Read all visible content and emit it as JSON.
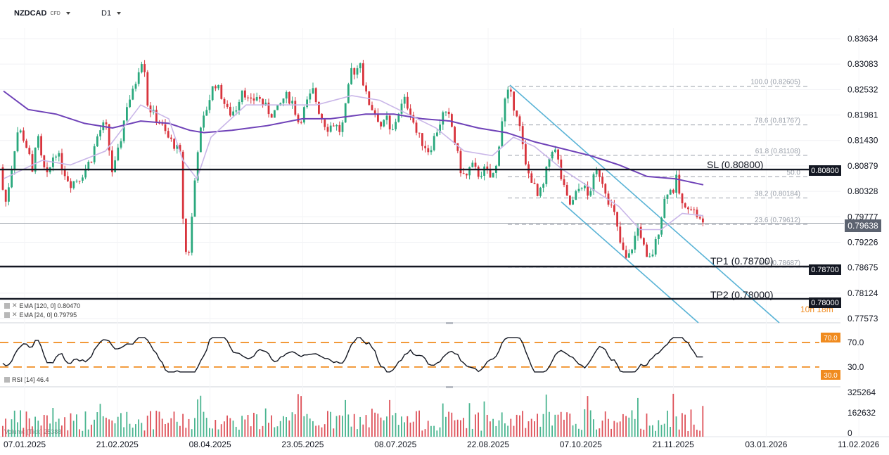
{
  "header": {
    "symbol": "NZDCAD",
    "symbol_tag": "CFD",
    "timeframe": "D1"
  },
  "legend": {
    "ema120": "EMA [120, 0] 0.80470",
    "ema24": "EMA [24, 0] 0.79795",
    "rsi": "RSI [14] 46.4",
    "volume": "Volume [Tick] 25388"
  },
  "colors": {
    "up": "#2aa87d",
    "down": "#d8343d",
    "ema120": "#6f42b8",
    "ema24": "#c9b6e8",
    "channel": "#59b3d6",
    "rsi_band": "#f08b1f",
    "level": "#131722"
  },
  "annotations": {
    "sl": "SL (0.80800)",
    "tp1": "TP1 (0.78700)",
    "tp2": "TP2 (0.78000)",
    "sl_tag": "0.80800",
    "tp1_tag": "0.78700",
    "tp2_tag": "0.78000",
    "current_tag": "0.79638",
    "countdown": "10h 18m",
    "rsi70_tag": "70.0",
    "rsi30_tag": "30.0"
  },
  "chart_data": {
    "type": "candlestick",
    "price_axis": {
      "range": [
        0.7757,
        0.8375
      ],
      "ticks": [
        "0.83634",
        "0.83083",
        "0.82532",
        "0.81981",
        "0.81430",
        "0.80879",
        "0.80328",
        "0.79777",
        "0.79226",
        "0.78675",
        "0.78124",
        "0.77573"
      ]
    },
    "x_axis": {
      "ticks": [
        "07.01.2025",
        "21.02.2025",
        "08.04.2025",
        "23.05.2025",
        "08.07.2025",
        "22.08.2025",
        "07.10.2025",
        "21.11.2025",
        "03.01.2026",
        "11.02.2026"
      ]
    },
    "fibonacci": [
      {
        "label": "100.0 (0.82605)",
        "value": 0.82605
      },
      {
        "label": "78.6 (0.81767)",
        "value": 0.81767
      },
      {
        "label": "61.8 (0.81108)",
        "value": 0.81108
      },
      {
        "label": "50.0",
        "value": 0.80645
      },
      {
        "label": "38.2 (0.80184)",
        "value": 0.80184
      },
      {
        "label": "23.6 (0.79612)",
        "value": 0.79612
      },
      {
        "label": "0.0 (0.78687)",
        "value": 0.78687
      }
    ],
    "levels": [
      {
        "name": "SL",
        "value": 0.808
      },
      {
        "name": "TP1",
        "value": 0.787
      },
      {
        "name": "TP2",
        "value": 0.78
      }
    ],
    "current_price": 0.79638,
    "anchor_closes": [
      [
        0,
        0.8085
      ],
      [
        7,
        0.8
      ],
      [
        14,
        0.806
      ],
      [
        20,
        0.812
      ],
      [
        26,
        0.817
      ],
      [
        33,
        0.815
      ],
      [
        40,
        0.812
      ],
      [
        46,
        0.807
      ],
      [
        52,
        0.8165
      ],
      [
        60,
        0.809
      ],
      [
        68,
        0.806
      ],
      [
        74,
        0.8105
      ],
      [
        80,
        0.812
      ],
      [
        90,
        0.808
      ],
      [
        100,
        0.805
      ],
      [
        115,
        0.8065
      ],
      [
        130,
        0.8105
      ],
      [
        140,
        0.816
      ],
      [
        150,
        0.818
      ],
      [
        160,
        0.807
      ],
      [
        170,
        0.813
      ],
      [
        180,
        0.822
      ],
      [
        190,
        0.825
      ],
      [
        200,
        0.832
      ],
      [
        205,
        0.831
      ],
      [
        210,
        0.822
      ],
      [
        218,
        0.82
      ],
      [
        228,
        0.818
      ],
      [
        238,
        0.815
      ],
      [
        250,
        0.813
      ],
      [
        256,
        0.811
      ],
      [
        262,
        0.792
      ],
      [
        267,
        0.788
      ],
      [
        271,
        0.794
      ],
      [
        276,
        0.804
      ],
      [
        282,
        0.814
      ],
      [
        288,
        0.818
      ],
      [
        295,
        0.822
      ],
      [
        305,
        0.827
      ],
      [
        315,
        0.824
      ],
      [
        325,
        0.82
      ],
      [
        335,
        0.821
      ],
      [
        345,
        0.826
      ],
      [
        355,
        0.822
      ],
      [
        365,
        0.824
      ],
      [
        375,
        0.822
      ],
      [
        385,
        0.82
      ],
      [
        395,
        0.821
      ],
      [
        405,
        0.824
      ],
      [
        415,
        0.823
      ],
      [
        425,
        0.818
      ],
      [
        435,
        0.822
      ],
      [
        445,
        0.825
      ],
      [
        455,
        0.82
      ],
      [
        465,
        0.817
      ],
      [
        475,
        0.818
      ],
      [
        485,
        0.816
      ],
      [
        492,
        0.822
      ],
      [
        500,
        0.83
      ],
      [
        506,
        0.829
      ],
      [
        512,
        0.832
      ],
      [
        518,
        0.825
      ],
      [
        526,
        0.822
      ],
      [
        535,
        0.82
      ],
      [
        543,
        0.817
      ],
      [
        550,
        0.819
      ],
      [
        556,
        0.815
      ],
      [
        565,
        0.82
      ],
      [
        575,
        0.823
      ],
      [
        583,
        0.821
      ],
      [
        592,
        0.816
      ],
      [
        600,
        0.814
      ],
      [
        610,
        0.812
      ],
      [
        620,
        0.816
      ],
      [
        630,
        0.82
      ],
      [
        640,
        0.819
      ],
      [
        648,
        0.813
      ],
      [
        655,
        0.808
      ],
      [
        662,
        0.806
      ],
      [
        670,
        0.809
      ],
      [
        680,
        0.807
      ],
      [
        690,
        0.808
      ],
      [
        698,
        0.806
      ],
      [
        705,
        0.808
      ],
      [
        712,
        0.817
      ],
      [
        718,
        0.823
      ],
      [
        724,
        0.825
      ],
      [
        730,
        0.822
      ],
      [
        736,
        0.82
      ],
      [
        742,
        0.814
      ],
      [
        748,
        0.808
      ],
      [
        756,
        0.806
      ],
      [
        764,
        0.802
      ],
      [
        772,
        0.804
      ],
      [
        780,
        0.81
      ],
      [
        786,
        0.813
      ],
      [
        792,
        0.811
      ],
      [
        798,
        0.806
      ],
      [
        805,
        0.802
      ],
      [
        812,
        0.8
      ],
      [
        820,
        0.803
      ],
      [
        828,
        0.805
      ],
      [
        836,
        0.802
      ],
      [
        844,
        0.806
      ],
      [
        850,
        0.808
      ],
      [
        858,
        0.805
      ],
      [
        866,
        0.801
      ],
      [
        874,
        0.798
      ],
      [
        880,
        0.793
      ],
      [
        886,
        0.79
      ],
      [
        892,
        0.788
      ],
      [
        900,
        0.792
      ],
      [
        908,
        0.796
      ],
      [
        914,
        0.792
      ],
      [
        920,
        0.788
      ],
      [
        926,
        0.789
      ],
      [
        932,
        0.792
      ],
      [
        938,
        0.796
      ],
      [
        944,
        0.801
      ],
      [
        950,
        0.804
      ],
      [
        956,
        0.803
      ],
      [
        962,
        0.806
      ],
      [
        968,
        0.801
      ],
      [
        974,
        0.799
      ],
      [
        980,
        0.801
      ],
      [
        986,
        0.799
      ],
      [
        992,
        0.798
      ],
      [
        998,
        0.796
      ],
      [
        1002,
        0.7964
      ]
    ],
    "ema120": [
      [
        5,
        0.825
      ],
      [
        40,
        0.821
      ],
      [
        80,
        0.82
      ],
      [
        120,
        0.818
      ],
      [
        160,
        0.817
      ],
      [
        200,
        0.8185
      ],
      [
        240,
        0.818
      ],
      [
        270,
        0.8165
      ],
      [
        290,
        0.816
      ],
      [
        330,
        0.8165
      ],
      [
        380,
        0.8175
      ],
      [
        430,
        0.819
      ],
      [
        470,
        0.819
      ],
      [
        520,
        0.82
      ],
      [
        560,
        0.82
      ],
      [
        600,
        0.819
      ],
      [
        640,
        0.8185
      ],
      [
        680,
        0.817
      ],
      [
        720,
        0.816
      ],
      [
        760,
        0.814
      ],
      [
        800,
        0.8125
      ],
      [
        840,
        0.811
      ],
      [
        880,
        0.809
      ],
      [
        920,
        0.8065
      ],
      [
        960,
        0.806
      ],
      [
        1000,
        0.8047
      ]
    ],
    "ema24": [
      [
        5,
        0.806
      ],
      [
        60,
        0.81
      ],
      [
        100,
        0.809
      ],
      [
        150,
        0.812
      ],
      [
        200,
        0.822
      ],
      [
        240,
        0.819
      ],
      [
        260,
        0.81
      ],
      [
        280,
        0.806
      ],
      [
        300,
        0.815
      ],
      [
        350,
        0.822
      ],
      [
        400,
        0.822
      ],
      [
        450,
        0.822
      ],
      [
        500,
        0.824
      ],
      [
        540,
        0.823
      ],
      [
        580,
        0.82
      ],
      [
        620,
        0.817
      ],
      [
        660,
        0.812
      ],
      [
        700,
        0.811
      ],
      [
        730,
        0.815
      ],
      [
        760,
        0.813
      ],
      [
        800,
        0.808
      ],
      [
        840,
        0.804
      ],
      [
        880,
        0.8
      ],
      [
        910,
        0.795
      ],
      [
        940,
        0.795
      ],
      [
        970,
        0.7985
      ],
      [
        1000,
        0.798
      ]
    ],
    "rsi": {
      "bands": [
        30,
        70
      ],
      "current": 46.4
    },
    "volume": {
      "ticks": [
        "325264",
        "162632",
        "0"
      ],
      "current": 25388
    }
  }
}
